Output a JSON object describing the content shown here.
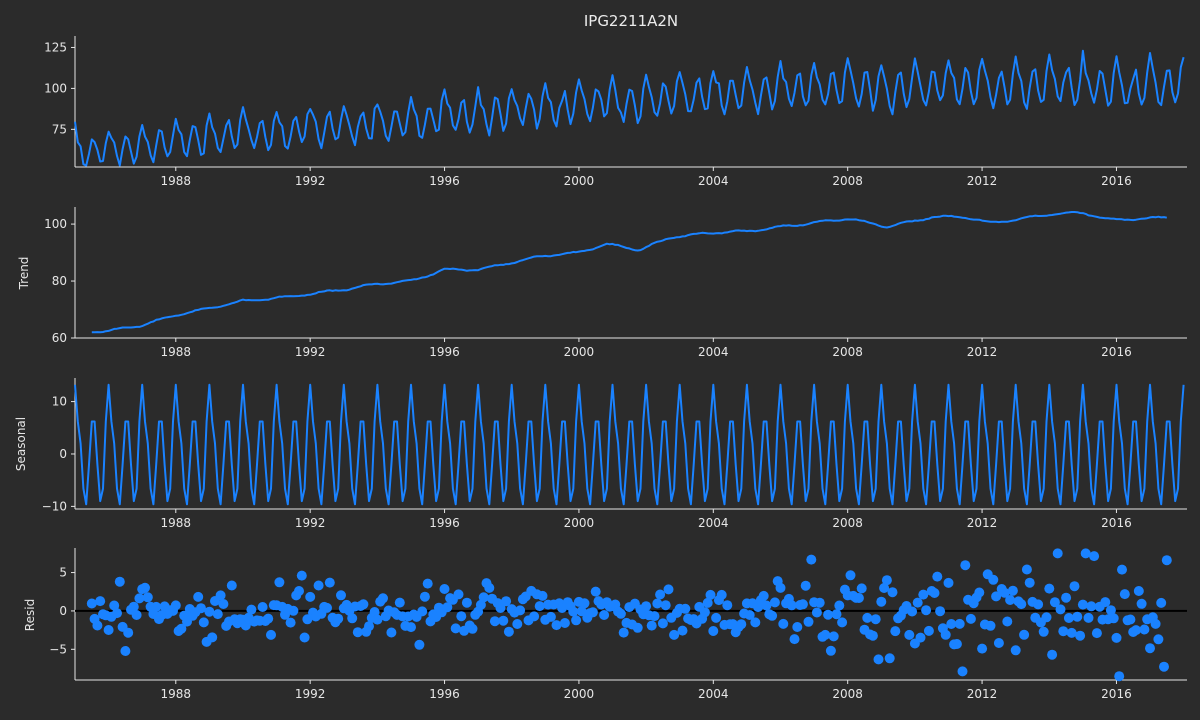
{
  "figure": {
    "title": "IPG2211A2N",
    "background": "#2b2b2b",
    "line_color": "#1a82ff",
    "axis_color": "#e6e6e6"
  },
  "chart_data": [
    {
      "type": "line",
      "title": "IPG2211A2N",
      "ylabel": "",
      "x_start": 1985.0,
      "x_end": 2018.0,
      "xlim": [
        1985.0,
        2018.1
      ],
      "ylim": [
        52,
        132
      ],
      "xticks": [
        "1988",
        "1992",
        "1996",
        "2000",
        "2004",
        "2008",
        "2012",
        "2016"
      ],
      "yticks": [
        "75",
        "100",
        "125"
      ],
      "trend_anchors": [
        [
          1985.0,
          62
        ],
        [
          1986.0,
          62.5
        ],
        [
          1987.0,
          64.5
        ],
        [
          1988.0,
          68
        ],
        [
          1989.0,
          70.5
        ],
        [
          1990.0,
          73
        ],
        [
          1991.0,
          74
        ],
        [
          1992.0,
          75.5
        ],
        [
          1993.0,
          77
        ],
        [
          1994.0,
          79
        ],
        [
          1995.0,
          80
        ],
        [
          1996.0,
          84
        ],
        [
          1997.0,
          84
        ],
        [
          1998.0,
          86.5
        ],
        [
          1999.0,
          89
        ],
        [
          2000.0,
          90
        ],
        [
          2000.8,
          93
        ],
        [
          2001.8,
          91
        ],
        [
          2002.8,
          95.5
        ],
        [
          2004.0,
          97
        ],
        [
          2005.0,
          97.5
        ],
        [
          2006.0,
          99
        ],
        [
          2007.0,
          100.5
        ],
        [
          2008.0,
          102
        ],
        [
          2009.2,
          99
        ],
        [
          2010.5,
          102.5
        ],
        [
          2011.5,
          102.5
        ],
        [
          2012.2,
          100.5
        ],
        [
          2013.0,
          101.5
        ],
        [
          2014.0,
          103.5
        ],
        [
          2015.0,
          104
        ],
        [
          2015.8,
          101.5
        ],
        [
          2017.0,
          102
        ],
        [
          2018.0,
          103
        ]
      ],
      "seasonal_pattern": [
        13.2,
        6.2,
        2.0,
        -6.6,
        -9.6,
        -2.0,
        6.2,
        6.2,
        -2.0,
        -9.0,
        -6.6,
        6.2
      ],
      "seasonal_growth": 0.3,
      "series": [
        {
          "name": "",
          "color": "#1a82ff"
        }
      ]
    },
    {
      "type": "line",
      "ylabel": "Trend",
      "x_start": 1985.5,
      "x_end": 2017.5,
      "xlim": [
        1985.0,
        2018.1
      ],
      "ylim": [
        60,
        106
      ],
      "xticks": [
        "1988",
        "1992",
        "1996",
        "2000",
        "2004",
        "2008",
        "2012",
        "2016"
      ],
      "yticks": [
        "60",
        "80",
        "100"
      ],
      "series": [
        {
          "name": "",
          "color": "#1a82ff"
        }
      ]
    },
    {
      "type": "line",
      "ylabel": "Seasonal",
      "x_start": 1985.0,
      "x_end": 2018.0,
      "xlim": [
        1985.0,
        2018.1
      ],
      "ylim": [
        -10.5,
        14.5
      ],
      "xticks": [
        "1988",
        "1992",
        "1996",
        "2000",
        "2004",
        "2008",
        "2012",
        "2016"
      ],
      "yticks": [
        "−10",
        "0",
        "10"
      ],
      "pattern": [
        13.2,
        6.2,
        2.0,
        -6.6,
        -9.6,
        -2.0,
        6.2,
        6.2,
        -2.0,
        -9.0,
        -6.6,
        6.2
      ],
      "series": [
        {
          "name": "",
          "color": "#1a82ff"
        }
      ]
    },
    {
      "type": "scatter",
      "ylabel": "Resid",
      "x_start": 1985.5,
      "x_end": 2017.5,
      "xlim": [
        1985.0,
        2018.1
      ],
      "ylim": [
        -9,
        8.2
      ],
      "xticks": [
        "1988",
        "1992",
        "1996",
        "2000",
        "2004",
        "2008",
        "2012",
        "2016"
      ],
      "yticks": [
        "−5",
        "0",
        "5"
      ],
      "zero_line": true,
      "scale_anchors": [
        [
          1985.5,
          2.0
        ],
        [
          1995.0,
          1.8
        ],
        [
          1999.0,
          1.5
        ],
        [
          2003.0,
          1.9
        ],
        [
          2007.0,
          2.7
        ],
        [
          2011.0,
          3.2
        ],
        [
          2017.5,
          3.4
        ]
      ],
      "series": [
        {
          "name": "",
          "color": "#1a82ff"
        }
      ]
    }
  ]
}
